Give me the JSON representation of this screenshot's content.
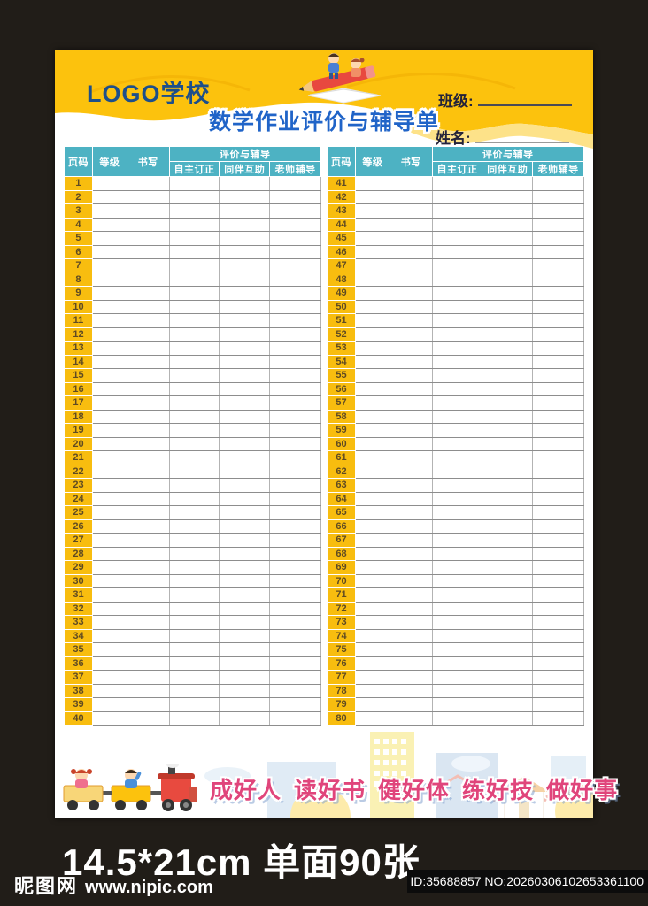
{
  "sheet": {
    "logo_text": "LOGO学校",
    "title": "数学作业评价与辅导单",
    "class_label": "班级:",
    "name_label": "姓名:",
    "table_headers": {
      "page": "页码",
      "grade": "等级",
      "writing": "书写",
      "evaluation_group": "评价与辅导",
      "self_correction": "自主订正",
      "peer_help": "同伴互助",
      "teacher_tutoring": "老师辅导"
    },
    "left_page_numbers": [
      1,
      2,
      3,
      4,
      5,
      6,
      7,
      8,
      9,
      10,
      11,
      12,
      13,
      14,
      15,
      16,
      17,
      18,
      19,
      20,
      21,
      22,
      23,
      24,
      25,
      26,
      27,
      28,
      29,
      30,
      31,
      32,
      33,
      34,
      35,
      36,
      37,
      38,
      39,
      40
    ],
    "right_page_numbers": [
      41,
      42,
      43,
      44,
      45,
      46,
      47,
      48,
      49,
      50,
      51,
      52,
      53,
      54,
      55,
      56,
      57,
      58,
      59,
      60,
      61,
      62,
      63,
      64,
      65,
      66,
      67,
      68,
      69,
      70,
      71,
      72,
      73,
      74,
      75,
      76,
      77,
      78,
      79,
      80
    ],
    "motto_items": [
      "成好人",
      "读好书",
      "健好体",
      "练好技",
      "做好事"
    ]
  },
  "footer_caption": "14.5*21cm 单面90张",
  "watermark": {
    "site_name": "昵图网",
    "site_url": "www.nipic.com",
    "image_id": "ID:35688857 NO:20260306102653361100"
  },
  "colors": {
    "band_yellow": "#fcc20d",
    "light_yellow": "#fde289",
    "header_teal": "#4db2c3",
    "title_blue": "#2064c8",
    "logo_blue": "#1d4f8a",
    "page_number_brown": "#5f4b23",
    "motto_pink": "#e0457b"
  }
}
